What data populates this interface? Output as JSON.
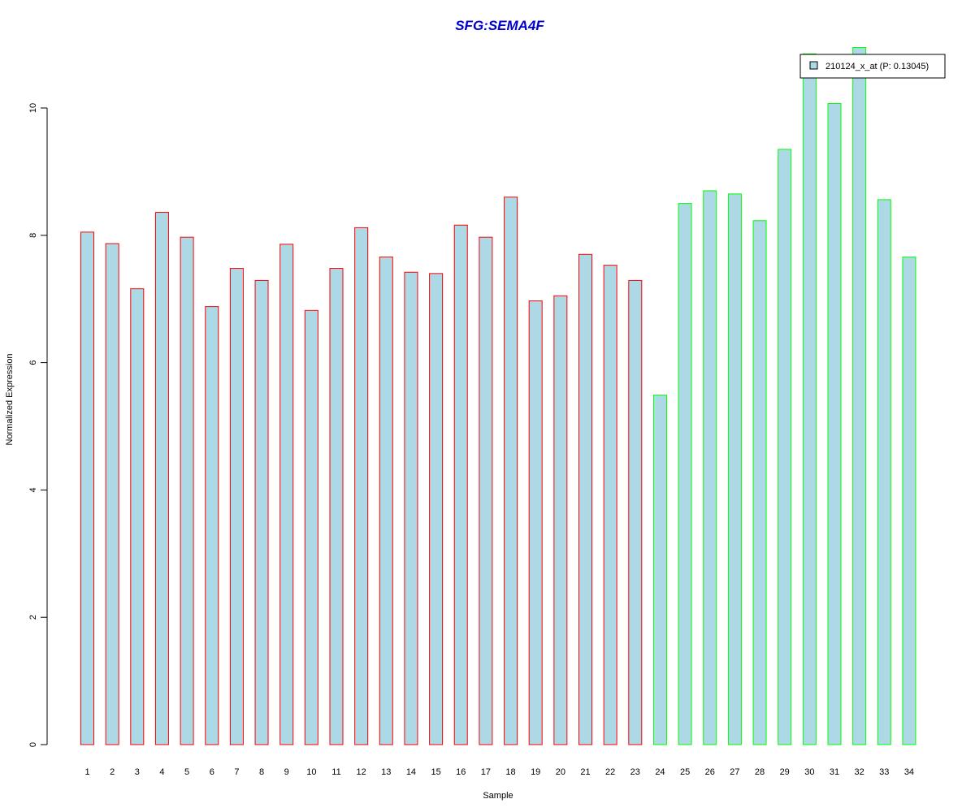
{
  "chart_data": {
    "type": "bar",
    "title": "SFG:SEMA4F",
    "xlabel": "Sample",
    "ylabel": "Normalized Expression",
    "ylim": [
      0,
      11
    ],
    "yticks": [
      0,
      2,
      4,
      6,
      8,
      10
    ],
    "ytick_labels": [
      "0",
      "2",
      "4",
      "6",
      "8",
      "10"
    ],
    "categories": [
      "1",
      "2",
      "3",
      "4",
      "5",
      "6",
      "7",
      "8",
      "9",
      "10",
      "11",
      "12",
      "13",
      "14",
      "15",
      "16",
      "17",
      "18",
      "19",
      "20",
      "21",
      "22",
      "23",
      "24",
      "25",
      "26",
      "27",
      "28",
      "29",
      "30",
      "31",
      "32",
      "33",
      "34"
    ],
    "series": [
      {
        "name": "210124_x_at (P: 0.13045)",
        "values": [
          8.05,
          7.87,
          7.16,
          8.36,
          7.97,
          6.88,
          7.48,
          7.29,
          7.86,
          6.82,
          7.48,
          8.12,
          7.66,
          7.42,
          7.4,
          8.16,
          7.97,
          8.6,
          6.97,
          7.05,
          7.7,
          7.53,
          7.29,
          5.49,
          8.5,
          8.7,
          8.65,
          8.23,
          9.35,
          10.85,
          10.07,
          10.95,
          8.56,
          7.66
        ]
      }
    ],
    "groups": [
      {
        "range": [
          1,
          23
        ],
        "border_color": "#ff0000"
      },
      {
        "range": [
          24,
          34
        ],
        "border_color": "#00ff00"
      }
    ],
    "bar_fill_color": "#add8e6",
    "title_color": "#0000cd",
    "legend": {
      "label": "210124_x_at (P: 0.13045)",
      "position": "top-right"
    },
    "grid": false
  }
}
